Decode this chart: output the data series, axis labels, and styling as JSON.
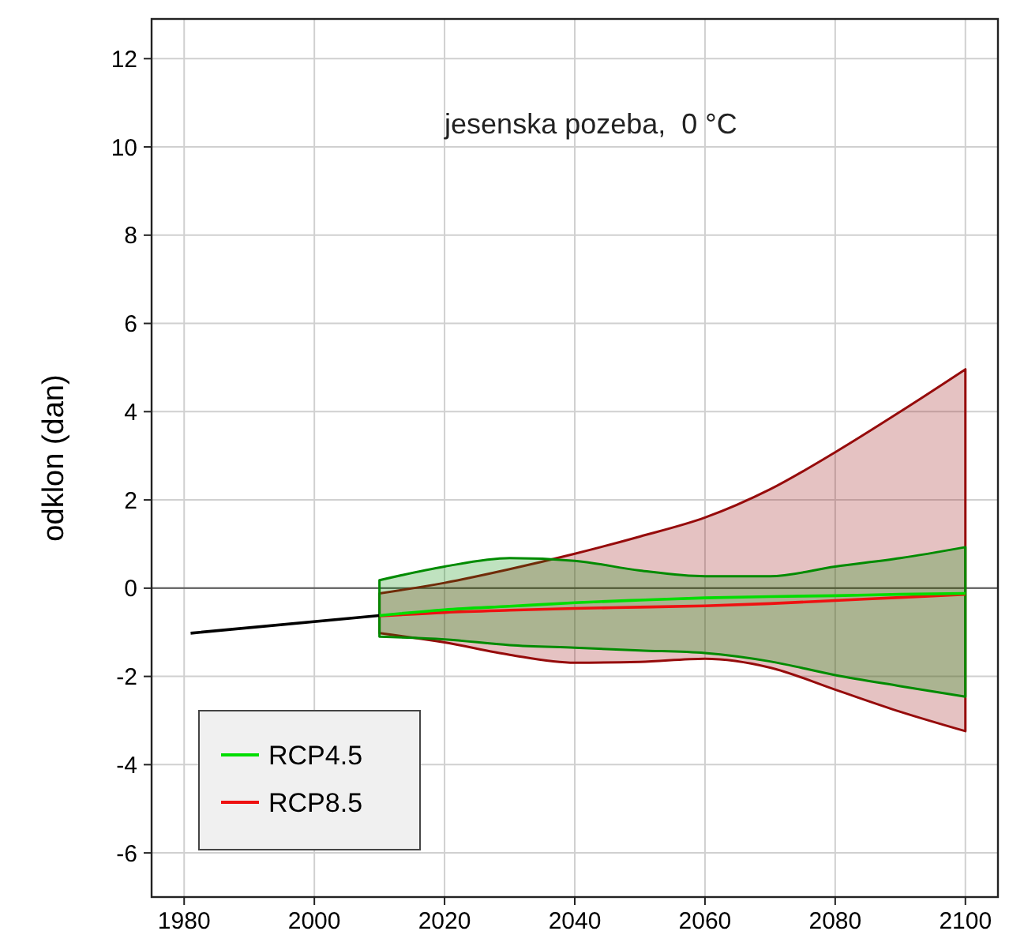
{
  "chart_data": {
    "type": "line",
    "title": "jesenska pozeba,  0 °C",
    "ylabel": "odklon (dan)",
    "xlim": [
      1975,
      2105
    ],
    "ylim": [
      -7,
      12.9
    ],
    "xticks": [
      1980,
      2000,
      2020,
      2040,
      2060,
      2080,
      2100
    ],
    "yticks": [
      -6,
      -4,
      -2,
      0,
      2,
      4,
      6,
      8,
      10,
      12
    ],
    "grid": true,
    "legend": "bottom left",
    "marker": "none",
    "line_style": "solid",
    "ref_lines": [
      {
        "axis": "y",
        "value": 0,
        "label": null,
        "color": "#555555"
      }
    ],
    "series": [
      {
        "color": "#000000",
        "x": [
          1981,
          2010
        ],
        "values": [
          -1.02,
          -0.62
        ]
      },
      {
        "name": "RCP8.5",
        "color": "#ee1111",
        "x": [
          2010,
          2020,
          2030,
          2040,
          2050,
          2060,
          2070,
          2080,
          2090,
          2100
        ],
        "values": [
          -0.63,
          -0.55,
          -0.5,
          -0.46,
          -0.43,
          -0.4,
          -0.35,
          -0.28,
          -0.21,
          -0.14
        ],
        "lower": [
          -1.02,
          -1.23,
          -1.51,
          -1.69,
          -1.67,
          -1.6,
          -1.8,
          -2.3,
          -2.8,
          -3.24
        ],
        "upper": [
          -0.12,
          0.12,
          0.43,
          0.78,
          1.17,
          1.6,
          2.24,
          3.08,
          4.0,
          4.96
        ]
      },
      {
        "name": "RCP4.5",
        "color": "#00dd00",
        "x": [
          2010,
          2020,
          2030,
          2040,
          2050,
          2060,
          2070,
          2080,
          2090,
          2100
        ],
        "values": [
          -0.62,
          -0.49,
          -0.41,
          -0.33,
          -0.27,
          -0.22,
          -0.19,
          -0.17,
          -0.14,
          -0.12
        ],
        "lower": [
          -1.1,
          -1.16,
          -1.29,
          -1.35,
          -1.41,
          -1.47,
          -1.66,
          -1.97,
          -2.22,
          -2.46
        ],
        "upper": [
          0.18,
          0.49,
          0.68,
          0.62,
          0.4,
          0.27,
          0.27,
          0.49,
          0.68,
          0.93
        ]
      }
    ]
  }
}
